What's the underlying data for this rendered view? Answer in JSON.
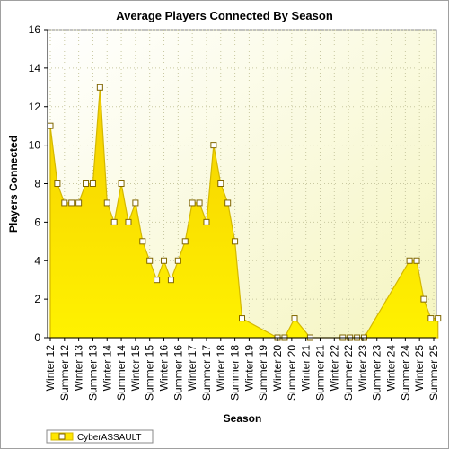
{
  "chart_data": {
    "type": "area",
    "title": "Average Players Connected By Season",
    "xlabel": "Season",
    "ylabel": "Players Connected",
    "ylim": [
      0,
      16
    ],
    "yticks": [
      0,
      2,
      4,
      6,
      8,
      10,
      12,
      14,
      16
    ],
    "grid": true,
    "legend_position": "bottom-left",
    "x_tick_labels": [
      "Winter 12",
      "Summer 12",
      "Winter 13",
      "Summer 13",
      "Winter 14",
      "Summer 14",
      "Winter 15",
      "Summer 15",
      "Winter 16",
      "Summer 16",
      "Winter 17",
      "Summer 17",
      "Winter 18",
      "Summer 18",
      "Winter 19",
      "Summer 19",
      "Winter 20",
      "Summer 20",
      "Winter 21",
      "Summer 21",
      "Winter 22",
      "Summer 22",
      "Winter 23",
      "Summer 23",
      "Winter 24",
      "Summer 24",
      "Winter 25",
      "Summer 25"
    ],
    "series": [
      {
        "name": "CyberASSAULT",
        "color": "#ffe600",
        "edge_color": "#d4b800",
        "points": [
          {
            "x": 0.0,
            "y": 11
          },
          {
            "x": 0.5,
            "y": 8
          },
          {
            "x": 1.0,
            "y": 7
          },
          {
            "x": 1.5,
            "y": 7
          },
          {
            "x": 2.0,
            "y": 7
          },
          {
            "x": 2.5,
            "y": 8
          },
          {
            "x": 3.0,
            "y": 8
          },
          {
            "x": 3.5,
            "y": 13
          },
          {
            "x": 4.0,
            "y": 7
          },
          {
            "x": 4.5,
            "y": 6
          },
          {
            "x": 5.0,
            "y": 8
          },
          {
            "x": 5.5,
            "y": 6
          },
          {
            "x": 6.0,
            "y": 7
          },
          {
            "x": 6.5,
            "y": 5
          },
          {
            "x": 7.0,
            "y": 4
          },
          {
            "x": 7.5,
            "y": 3
          },
          {
            "x": 8.0,
            "y": 4
          },
          {
            "x": 8.5,
            "y": 3
          },
          {
            "x": 9.0,
            "y": 4
          },
          {
            "x": 9.5,
            "y": 5
          },
          {
            "x": 10.0,
            "y": 7
          },
          {
            "x": 10.5,
            "y": 7
          },
          {
            "x": 11.0,
            "y": 6
          },
          {
            "x": 11.5,
            "y": 10
          },
          {
            "x": 12.0,
            "y": 8
          },
          {
            "x": 12.5,
            "y": 7
          },
          {
            "x": 13.0,
            "y": 5
          },
          {
            "x": 13.5,
            "y": 1
          },
          {
            "x": 16.0,
            "y": 0
          },
          {
            "x": 16.5,
            "y": 0
          },
          {
            "x": 17.2,
            "y": 1
          },
          {
            "x": 18.3,
            "y": 0
          },
          {
            "x": 20.6,
            "y": 0
          },
          {
            "x": 21.1,
            "y": 0
          },
          {
            "x": 21.6,
            "y": 0
          },
          {
            "x": 22.1,
            "y": 0
          },
          {
            "x": 25.3,
            "y": 4
          },
          {
            "x": 25.8,
            "y": 4
          },
          {
            "x": 26.3,
            "y": 2
          },
          {
            "x": 26.8,
            "y": 1
          },
          {
            "x": 27.3,
            "y": 1
          }
        ]
      }
    ]
  }
}
